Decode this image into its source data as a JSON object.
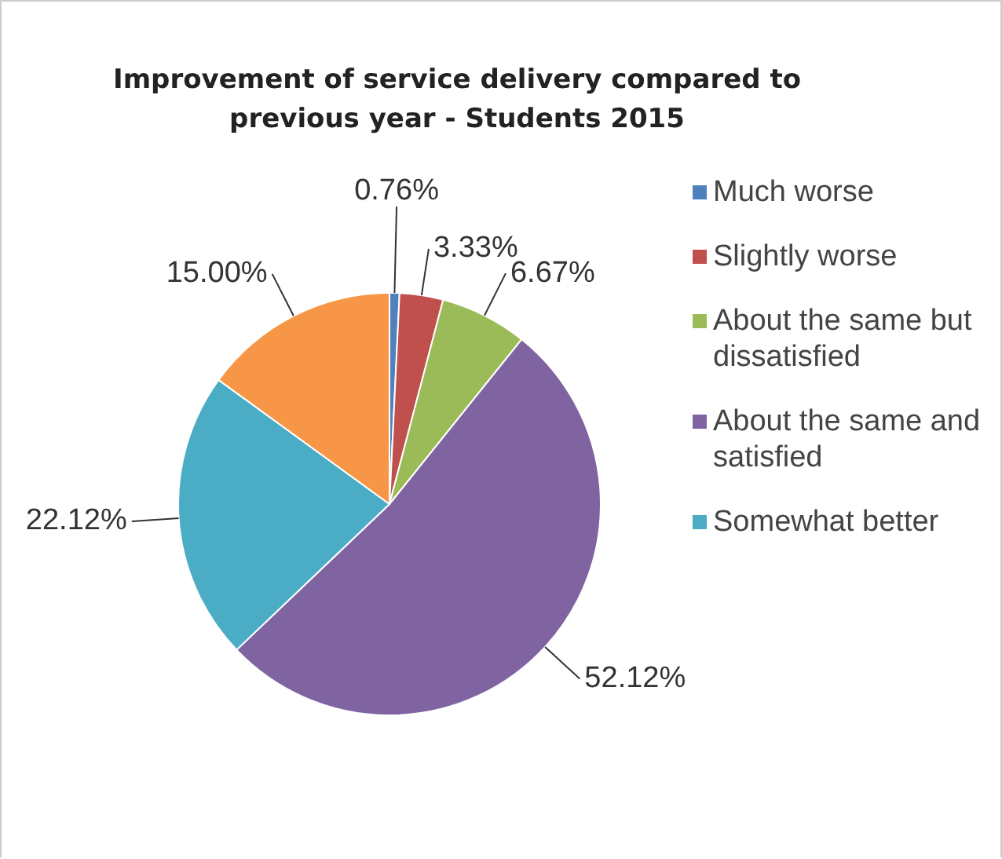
{
  "chart_data": {
    "type": "pie",
    "title": "Improvement of service delivery compared to previous year - Students 2015",
    "categories": [
      "Much worse",
      "Slightly worse",
      "About the same but dissatisfied",
      "About the same and satisfied",
      "Somewhat better",
      null
    ],
    "values": [
      0.76,
      3.33,
      6.67,
      52.12,
      22.12,
      15.0
    ],
    "value_labels": [
      "0.76%",
      "3.33%",
      "6.67%",
      "52.12%",
      "22.12%",
      "15.00%"
    ],
    "colors": [
      "#4f81bd",
      "#c0504d",
      "#9bbb59",
      "#8064a2",
      "#4bacc6",
      "#f79646"
    ],
    "legend": "right"
  }
}
